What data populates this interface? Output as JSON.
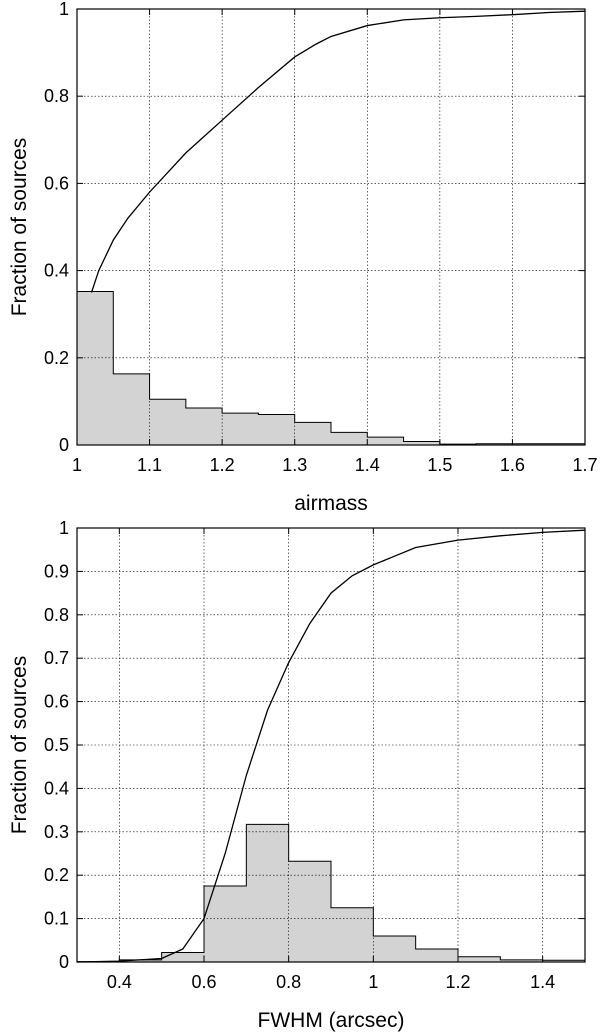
{
  "chart_data": [
    {
      "type": "bar",
      "subtype": "histogram-with-cumulative-line",
      "xlabel": "airmass",
      "ylabel": "Fraction of sources",
      "xlim": [
        1,
        1.7
      ],
      "ylim": [
        0,
        1
      ],
      "xticks": [
        1,
        1.1,
        1.2,
        1.3,
        1.4,
        1.5,
        1.6,
        1.7
      ],
      "xtick_labels": [
        "1",
        "1.1",
        "1.2",
        "1.3",
        "1.4",
        "1.5",
        "1.6",
        "1.7"
      ],
      "yticks": [
        0,
        0.2,
        0.4,
        0.6,
        0.8,
        1
      ],
      "ytick_labels": [
        "0",
        "0.2",
        "0.4",
        "0.6",
        "0.8",
        "1"
      ],
      "grid": true,
      "bin_edges": [
        1.0,
        1.05,
        1.1,
        1.15,
        1.2,
        1.25,
        1.3,
        1.35,
        1.4,
        1.45,
        1.5,
        1.55,
        1.6,
        1.65,
        1.7
      ],
      "values": [
        0.352,
        0.163,
        0.105,
        0.085,
        0.073,
        0.07,
        0.052,
        0.029,
        0.018,
        0.008,
        0.002,
        0.003,
        0.003,
        0.003
      ],
      "cumulative": {
        "x": [
          1.02,
          1.03,
          1.05,
          1.07,
          1.1,
          1.15,
          1.2,
          1.25,
          1.3,
          1.33,
          1.35,
          1.4,
          1.45,
          1.5,
          1.55,
          1.6,
          1.65,
          1.7
        ],
        "y": [
          0.35,
          0.4,
          0.47,
          0.52,
          0.58,
          0.67,
          0.745,
          0.82,
          0.89,
          0.92,
          0.937,
          0.962,
          0.975,
          0.98,
          0.983,
          0.987,
          0.992,
          0.995
        ]
      }
    },
    {
      "type": "bar",
      "subtype": "histogram-with-cumulative-line",
      "xlabel": "FWHM (arcsec)",
      "ylabel": "Fraction of sources",
      "xlim": [
        0.3,
        1.5
      ],
      "ylim": [
        0,
        1
      ],
      "xticks": [
        0.4,
        0.6,
        0.8,
        1,
        1.2,
        1.4
      ],
      "xtick_labels": [
        "0.4",
        "0.6",
        "0.8",
        "1",
        "1.2",
        "1.4"
      ],
      "yticks": [
        0,
        0.1,
        0.2,
        0.3,
        0.4,
        0.5,
        0.6,
        0.7,
        0.8,
        0.9,
        1
      ],
      "ytick_labels": [
        "0",
        "0.1",
        "0.2",
        "0.3",
        "0.4",
        "0.5",
        "0.6",
        "0.7",
        "0.8",
        "0.9",
        "1"
      ],
      "grid": true,
      "bin_edges": [
        0.3,
        0.4,
        0.5,
        0.6,
        0.7,
        0.8,
        0.9,
        1.0,
        1.1,
        1.2,
        1.3,
        1.4,
        1.5
      ],
      "values": [
        0.001,
        0.005,
        0.022,
        0.175,
        0.317,
        0.232,
        0.125,
        0.06,
        0.03,
        0.012,
        0.005,
        0.004
      ],
      "cumulative": {
        "x": [
          0.3,
          0.4,
          0.5,
          0.55,
          0.6,
          0.65,
          0.7,
          0.75,
          0.8,
          0.85,
          0.9,
          0.95,
          1.0,
          1.05,
          1.1,
          1.2,
          1.3,
          1.4,
          1.5
        ],
        "y": [
          0.0,
          0.002,
          0.008,
          0.03,
          0.1,
          0.25,
          0.43,
          0.58,
          0.69,
          0.78,
          0.85,
          0.89,
          0.915,
          0.935,
          0.955,
          0.972,
          0.982,
          0.99,
          0.995
        ]
      }
    }
  ]
}
